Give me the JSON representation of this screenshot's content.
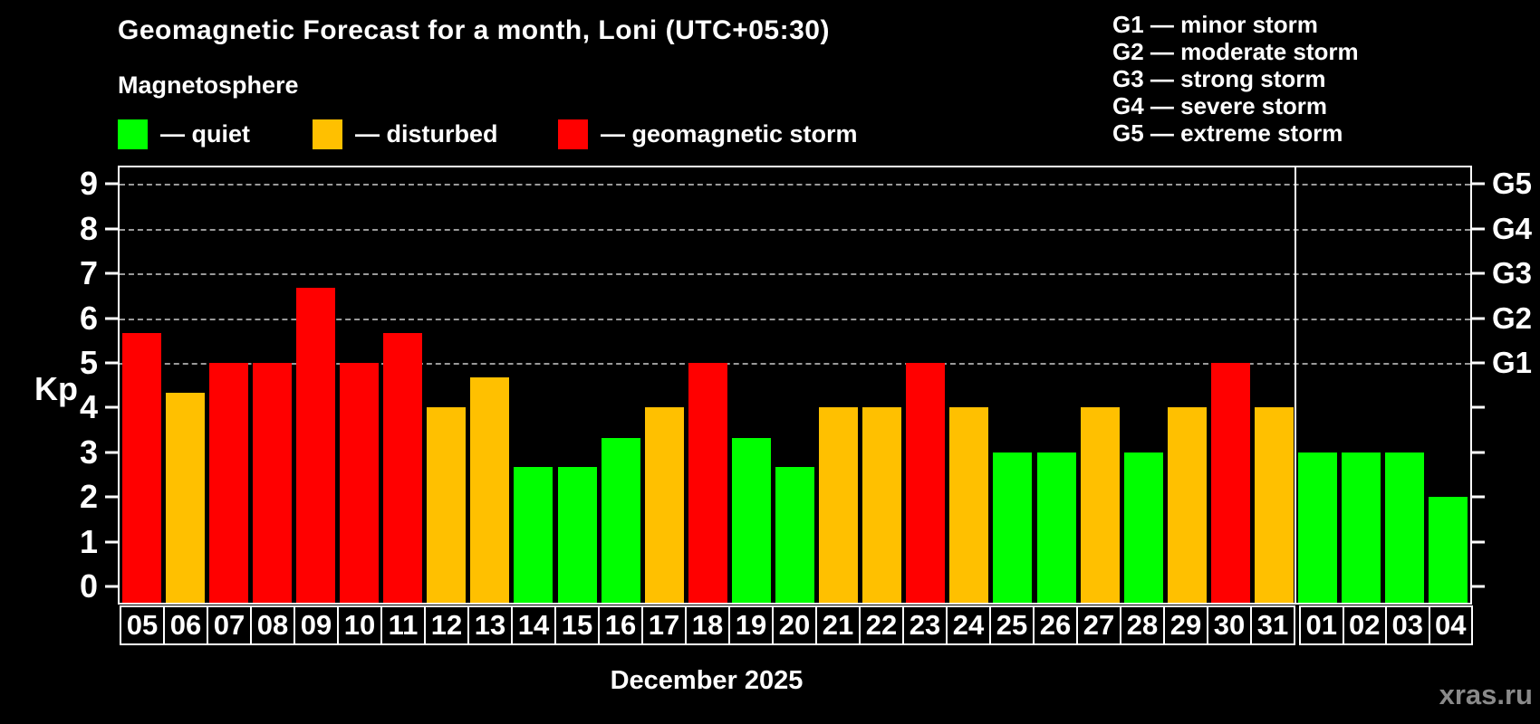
{
  "header": {
    "title": "Geomagnetic Forecast for a month, Loni (UTC+05:30)",
    "subtitle": "Magnetosphere"
  },
  "legend": {
    "items": [
      {
        "name": "quiet",
        "label": "— quiet",
        "color": "#00ff00"
      },
      {
        "name": "disturbed",
        "label": "— disturbed",
        "color": "#ffc000"
      },
      {
        "name": "storm",
        "label": "— geomagnetic storm",
        "color": "#ff0000"
      }
    ]
  },
  "g_legend": [
    "G1 — minor storm",
    "G2 — moderate storm",
    "G3 — strong storm",
    "G4 — severe storm",
    "G5 — extreme storm"
  ],
  "footer": {
    "watermark": "xras.ru"
  },
  "chart_data": {
    "type": "bar",
    "title": "Geomagnetic Forecast for a month, Loni (UTC+05:30)",
    "ylabel": "Kp",
    "xlabel": "December 2025",
    "ylim": [
      -0.36,
      9.37
    ],
    "y_ticks": [
      0,
      1,
      2,
      3,
      4,
      5,
      6,
      7,
      8,
      9
    ],
    "gridlines_kp": [
      5,
      6,
      7,
      8,
      9
    ],
    "grid": true,
    "legend_position": "top",
    "right_axis": {
      "labels": [
        "G1",
        "G2",
        "G3",
        "G4",
        "G5"
      ],
      "kp": [
        5,
        6,
        7,
        8,
        9
      ]
    },
    "categories": [
      "05",
      "06",
      "07",
      "08",
      "09",
      "10",
      "11",
      "12",
      "13",
      "14",
      "15",
      "16",
      "17",
      "18",
      "19",
      "20",
      "21",
      "22",
      "23",
      "24",
      "25",
      "26",
      "27",
      "28",
      "29",
      "30",
      "31",
      "01",
      "02",
      "03",
      "04"
    ],
    "values": [
      5.67,
      4.33,
      5,
      5,
      6.67,
      5,
      5.67,
      4,
      4.67,
      2.67,
      2.67,
      3.33,
      4,
      5,
      3.33,
      2.67,
      4,
      4,
      5,
      4,
      3,
      3,
      4,
      3,
      4,
      5,
      4,
      3,
      3,
      3,
      2
    ],
    "status": [
      "storm",
      "disturbed",
      "storm",
      "storm",
      "storm",
      "storm",
      "storm",
      "disturbed",
      "disturbed",
      "quiet",
      "quiet",
      "quiet",
      "disturbed",
      "storm",
      "quiet",
      "quiet",
      "disturbed",
      "disturbed",
      "storm",
      "disturbed",
      "quiet",
      "quiet",
      "disturbed",
      "quiet",
      "disturbed",
      "storm",
      "disturbed",
      "quiet",
      "quiet",
      "quiet",
      "quiet"
    ],
    "colors": {
      "quiet": "#00ff00",
      "disturbed": "#ffc000",
      "storm": "#ff0000"
    },
    "month_split_index": 27
  }
}
